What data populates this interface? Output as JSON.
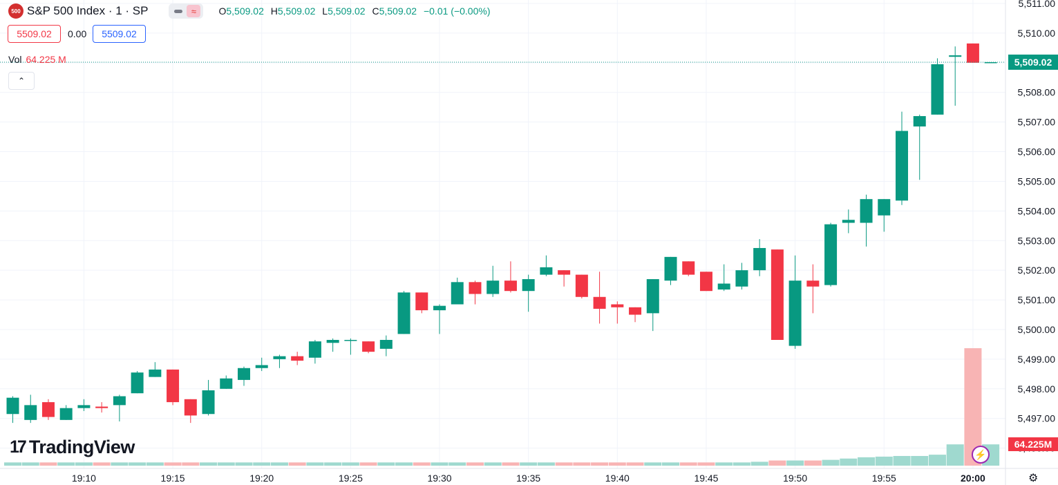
{
  "header": {
    "logo_text": "500",
    "symbol_title": "S&P 500 Index · 1 · SP",
    "open_label": "O",
    "open": "5,509.02",
    "high_label": "H",
    "high": "5,509.02",
    "low_label": "L",
    "low": "5,509.02",
    "close_label": "C",
    "close": "5,509.02",
    "change": "−0.01 (−0.00%)"
  },
  "quote": {
    "bid": "5509.02",
    "spread": "0.00",
    "ask": "5509.02"
  },
  "volume": {
    "label": "Vol",
    "value": "64.225 M",
    "axis_label": "64.225M"
  },
  "last_price_label": "5,509.02",
  "brand": {
    "name": "TradingView"
  },
  "icons": {
    "collapse": "chevron-up-icon",
    "bolt": "lightning-icon",
    "settings": "gear-icon"
  },
  "colors": {
    "up": "#089981",
    "down": "#f23645",
    "vol_up": "#9fd9cf",
    "vol_down": "#f8b4b4"
  },
  "chart_data": {
    "type": "candlestick",
    "y_ticks": [
      "5,511.00",
      "5,510.00",
      "5,509.00",
      "5,508.00",
      "5,507.00",
      "5,506.00",
      "5,505.00",
      "5,504.00",
      "5,503.00",
      "5,502.00",
      "5,501.00",
      "5,500.00",
      "5,499.00",
      "5,498.00",
      "5,497.00",
      "5,496.00"
    ],
    "y_tick_values": [
      5511,
      5510,
      5509,
      5508,
      5507,
      5506,
      5505,
      5504,
      5503,
      5502,
      5501,
      5500,
      5499,
      5498,
      5497,
      5496
    ],
    "x_ticks": [
      "19:10",
      "19:15",
      "19:20",
      "19:25",
      "19:30",
      "19:35",
      "19:40",
      "19:45",
      "19:50",
      "19:55",
      "20:00"
    ],
    "x_tick_index": [
      4,
      9,
      14,
      19,
      24,
      29,
      34,
      39,
      44,
      49,
      54
    ],
    "ylim": [
      5495.45,
      5511.2
    ],
    "grid": true,
    "candles": [
      {
        "t": "19:06",
        "o": 5497.15,
        "h": 5497.75,
        "l": 5496.85,
        "c": 5497.7
      },
      {
        "t": "19:07",
        "o": 5496.95,
        "h": 5497.8,
        "l": 5496.85,
        "c": 5497.45
      },
      {
        "t": "19:08",
        "o": 5497.55,
        "h": 5497.65,
        "l": 5496.95,
        "c": 5497.05
      },
      {
        "t": "19:09",
        "o": 5496.95,
        "h": 5497.45,
        "l": 5496.95,
        "c": 5497.35
      },
      {
        "t": "19:10",
        "o": 5497.35,
        "h": 5497.65,
        "l": 5497.25,
        "c": 5497.45
      },
      {
        "t": "19:11",
        "o": 5497.4,
        "h": 5497.55,
        "l": 5497.2,
        "c": 5497.35
      },
      {
        "t": "19:12",
        "o": 5497.45,
        "h": 5497.8,
        "l": 5496.9,
        "c": 5497.75
      },
      {
        "t": "19:13",
        "o": 5497.85,
        "h": 5498.6,
        "l": 5497.85,
        "c": 5498.55
      },
      {
        "t": "19:14",
        "o": 5498.4,
        "h": 5498.9,
        "l": 5498.4,
        "c": 5498.65
      },
      {
        "t": "19:15",
        "o": 5498.65,
        "h": 5498.65,
        "l": 5497.45,
        "c": 5497.55
      },
      {
        "t": "19:16",
        "o": 5497.65,
        "h": 5497.65,
        "l": 5496.85,
        "c": 5497.1
      },
      {
        "t": "19:17",
        "o": 5497.15,
        "h": 5498.3,
        "l": 5497.1,
        "c": 5497.95
      },
      {
        "t": "19:18",
        "o": 5498.0,
        "h": 5498.45,
        "l": 5498.0,
        "c": 5498.35
      },
      {
        "t": "19:19",
        "o": 5498.3,
        "h": 5498.75,
        "l": 5498.1,
        "c": 5498.7
      },
      {
        "t": "19:20",
        "o": 5498.7,
        "h": 5499.05,
        "l": 5498.6,
        "c": 5498.8
      },
      {
        "t": "19:21",
        "o": 5499.0,
        "h": 5499.15,
        "l": 5498.7,
        "c": 5499.1
      },
      {
        "t": "19:22",
        "o": 5499.1,
        "h": 5499.25,
        "l": 5498.8,
        "c": 5498.95
      },
      {
        "t": "19:23",
        "o": 5499.05,
        "h": 5499.65,
        "l": 5498.85,
        "c": 5499.6
      },
      {
        "t": "19:24",
        "o": 5499.55,
        "h": 5499.7,
        "l": 5499.25,
        "c": 5499.65
      },
      {
        "t": "19:25",
        "o": 5499.65,
        "h": 5499.7,
        "l": 5499.15,
        "c": 5499.65
      },
      {
        "t": "19:26",
        "o": 5499.6,
        "h": 5499.6,
        "l": 5499.2,
        "c": 5499.25
      },
      {
        "t": "19:27",
        "o": 5499.35,
        "h": 5499.8,
        "l": 5499.1,
        "c": 5499.65
      },
      {
        "t": "19:28",
        "o": 5499.85,
        "h": 5501.3,
        "l": 5499.85,
        "c": 5501.25
      },
      {
        "t": "19:29",
        "o": 5501.25,
        "h": 5501.25,
        "l": 5500.55,
        "c": 5500.65
      },
      {
        "t": "19:30",
        "o": 5500.65,
        "h": 5500.85,
        "l": 5499.85,
        "c": 5500.8
      },
      {
        "t": "19:31",
        "o": 5500.85,
        "h": 5501.75,
        "l": 5500.85,
        "c": 5501.6
      },
      {
        "t": "19:32",
        "o": 5501.6,
        "h": 5501.65,
        "l": 5500.85,
        "c": 5501.2
      },
      {
        "t": "19:33",
        "o": 5501.2,
        "h": 5502.15,
        "l": 5501.1,
        "c": 5501.65
      },
      {
        "t": "19:34",
        "o": 5501.65,
        "h": 5502.3,
        "l": 5501.25,
        "c": 5501.3
      },
      {
        "t": "19:35",
        "o": 5501.3,
        "h": 5501.85,
        "l": 5500.6,
        "c": 5501.7
      },
      {
        "t": "19:36",
        "o": 5501.85,
        "h": 5502.5,
        "l": 5501.8,
        "c": 5502.1
      },
      {
        "t": "19:37",
        "o": 5502.0,
        "h": 5502.0,
        "l": 5501.45,
        "c": 5501.85
      },
      {
        "t": "19:38",
        "o": 5501.85,
        "h": 5501.85,
        "l": 5501.05,
        "c": 5501.1
      },
      {
        "t": "19:39",
        "o": 5501.1,
        "h": 5501.95,
        "l": 5500.2,
        "c": 5500.7
      },
      {
        "t": "19:40",
        "o": 5500.85,
        "h": 5500.95,
        "l": 5500.2,
        "c": 5500.75
      },
      {
        "t": "19:41",
        "o": 5500.75,
        "h": 5500.75,
        "l": 5500.25,
        "c": 5500.5
      },
      {
        "t": "19:42",
        "o": 5500.55,
        "h": 5501.7,
        "l": 5499.95,
        "c": 5501.7
      },
      {
        "t": "19:43",
        "o": 5501.65,
        "h": 5502.45,
        "l": 5501.5,
        "c": 5502.45
      },
      {
        "t": "19:44",
        "o": 5502.3,
        "h": 5502.3,
        "l": 5501.8,
        "c": 5501.85
      },
      {
        "t": "19:45",
        "o": 5501.95,
        "h": 5501.95,
        "l": 5501.3,
        "c": 5501.3
      },
      {
        "t": "19:46",
        "o": 5501.35,
        "h": 5502.2,
        "l": 5501.3,
        "c": 5501.55
      },
      {
        "t": "19:47",
        "o": 5501.45,
        "h": 5502.25,
        "l": 5501.35,
        "c": 5502.0
      },
      {
        "t": "19:48",
        "o": 5502.0,
        "h": 5503.05,
        "l": 5501.8,
        "c": 5502.75
      },
      {
        "t": "19:49",
        "o": 5502.7,
        "h": 5502.7,
        "l": 5499.65,
        "c": 5499.65
      },
      {
        "t": "19:50",
        "o": 5499.45,
        "h": 5502.5,
        "l": 5499.35,
        "c": 5501.65
      },
      {
        "t": "19:51",
        "o": 5501.65,
        "h": 5502.2,
        "l": 5500.55,
        "c": 5501.45
      },
      {
        "t": "19:52",
        "o": 5501.5,
        "h": 5503.6,
        "l": 5501.45,
        "c": 5503.55
      },
      {
        "t": "19:53",
        "o": 5503.6,
        "h": 5504.05,
        "l": 5503.25,
        "c": 5503.7
      },
      {
        "t": "19:54",
        "o": 5503.6,
        "h": 5504.55,
        "l": 5502.8,
        "c": 5504.4
      },
      {
        "t": "19:55",
        "o": 5503.85,
        "h": 5504.4,
        "l": 5503.3,
        "c": 5504.4
      },
      {
        "t": "19:56",
        "o": 5504.35,
        "h": 5507.35,
        "l": 5504.2,
        "c": 5506.7
      },
      {
        "t": "19:57",
        "o": 5506.85,
        "h": 5507.25,
        "l": 5505.05,
        "c": 5507.2
      },
      {
        "t": "19:58",
        "o": 5507.25,
        "h": 5509.15,
        "l": 5507.25,
        "c": 5508.95
      },
      {
        "t": "19:59",
        "o": 5509.2,
        "h": 5509.55,
        "l": 5507.55,
        "c": 5509.25
      },
      {
        "t": "20:00",
        "o": 5509.65,
        "h": 5509.65,
        "l": 5509.0,
        "c": 5509.0
      },
      {
        "t": "20:01",
        "o": 5509.02,
        "h": 5509.02,
        "l": 5509.02,
        "c": 5509.02
      }
    ],
    "volume": [
      0.5,
      0.5,
      0.5,
      0.5,
      0.5,
      0.5,
      0.5,
      0.5,
      0.5,
      0.5,
      0.5,
      0.5,
      0.5,
      0.5,
      0.5,
      0.5,
      0.5,
      0.5,
      0.5,
      0.5,
      0.5,
      0.5,
      0.5,
      0.5,
      0.5,
      0.5,
      0.5,
      0.5,
      0.5,
      0.5,
      0.5,
      0.5,
      0.5,
      0.5,
      0.5,
      0.5,
      0.5,
      0.5,
      0.5,
      0.5,
      0.5,
      0.5,
      0.6,
      0.8,
      0.8,
      0.8,
      0.9,
      1.1,
      1.3,
      1.4,
      1.5,
      1.5,
      1.7,
      3.3,
      18.2,
      3.3
    ]
  }
}
